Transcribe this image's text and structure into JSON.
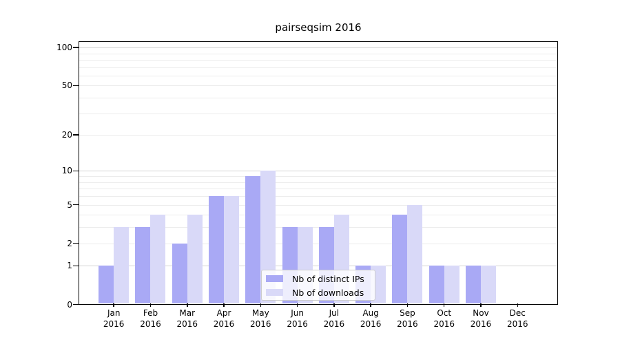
{
  "chart_data": {
    "type": "bar",
    "title": "pairseqsim 2016",
    "months": [
      "Jan",
      "Feb",
      "Mar",
      "Apr",
      "May",
      "Jun",
      "Jul",
      "Aug",
      "Sep",
      "Oct",
      "Nov",
      "Dec"
    ],
    "year": "2016",
    "categories": [
      "Jan 2016",
      "Feb 2016",
      "Mar 2016",
      "Apr 2016",
      "May 2016",
      "Jun 2016",
      "Jul 2016",
      "Aug 2016",
      "Sep 2016",
      "Oct 2016",
      "Nov 2016",
      "Dec 2016"
    ],
    "series": [
      {
        "name": "Nb of distinct IPs",
        "color": "#a9a9f5",
        "values": [
          1,
          3,
          2,
          6,
          9,
          3,
          3,
          1,
          4,
          1,
          1,
          0
        ]
      },
      {
        "name": "Nb of downloads",
        "color": "#d9d9f8",
        "values": [
          3,
          4,
          4,
          6,
          10,
          3,
          4,
          1,
          5,
          1,
          1,
          0
        ]
      }
    ],
    "y_axis": {
      "scale": "log1p",
      "ticks": [
        100,
        50,
        20,
        10,
        5,
        2,
        1,
        0
      ],
      "major_gridlines": [
        1,
        10,
        100
      ],
      "minor_gridlines": [
        2,
        3,
        4,
        5,
        6,
        7,
        8,
        9,
        20,
        30,
        40,
        50,
        60,
        70,
        80,
        90
      ],
      "ylim": [
        0,
        113
      ],
      "grid": "on"
    },
    "legend": {
      "position": "lower-center"
    },
    "colors": {
      "grid_major": "#d2d2d2",
      "grid_minor": "#ececec",
      "spine": "#000000",
      "text": "#000000"
    }
  }
}
